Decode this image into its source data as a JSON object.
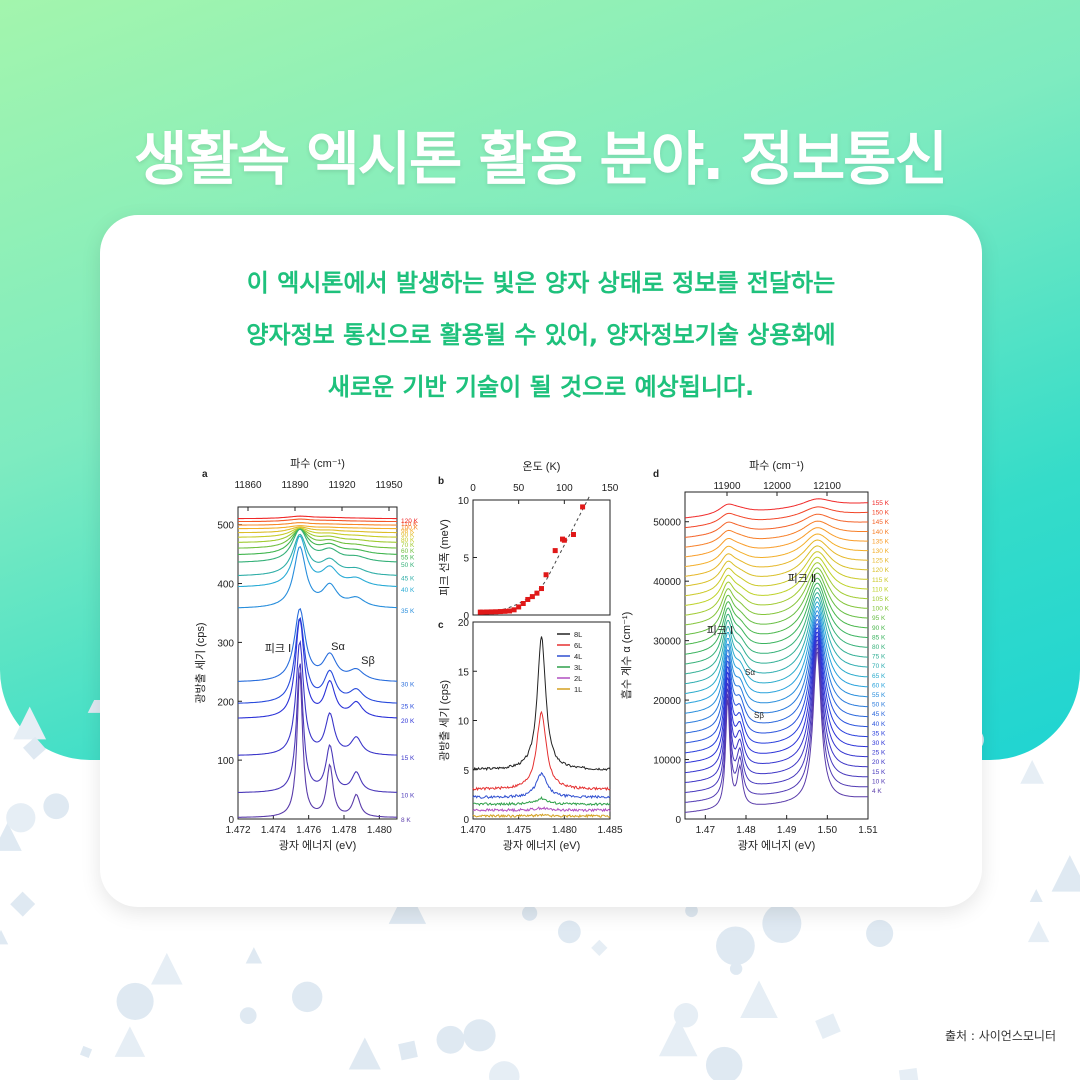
{
  "title": "생활속 엑시톤 활용 분야. 정보통신",
  "description": [
    "이 엑시톤에서 발생하는 빛은 양자 상태로 정보를 전달하는",
    "양자정보 통신으로 활용될 수 있어, 양자정보기술 상용화에",
    "새로운 기반 기술이 될 것으로 예상됩니다."
  ],
  "source": "출처 : 사이언스모니터",
  "colors": {
    "accent_text": "#1ec17c",
    "title": "#ffffff",
    "bg_from": "#a3f5ad",
    "bg_to": "#1fd4d2"
  },
  "chart_data": [
    {
      "panel": "a",
      "type": "line",
      "xlabel": "광자 에너지 (eV)",
      "ylabel": "광방출 세기 (cps)",
      "top_axis_label": "파수 (cm⁻¹)",
      "xlim": [
        1.472,
        1.481
      ],
      "ylim": [
        0,
        530
      ],
      "xticks": [
        "1.472",
        "1.474",
        "1.476",
        "1.478",
        "1.480"
      ],
      "yticks": [
        "0",
        "100",
        "200",
        "300",
        "400",
        "500"
      ],
      "top_ticks": [
        "11860",
        "11890",
        "11920",
        "11950"
      ],
      "annotations": [
        "피크 Ⅰ",
        "Sα",
        "Sβ"
      ],
      "series_labels": [
        "120 K",
        "110 K",
        "100 K",
        "98 K",
        "90 K",
        "80 K",
        "70 K",
        "60 K",
        "55 K",
        "50 K",
        "45 K",
        "40 K",
        "35 K",
        "30 K",
        "25 K",
        "20 K",
        "15 K",
        "10 K",
        "8 K"
      ],
      "offsets": [
        508,
        503,
        497,
        491,
        484,
        476,
        467,
        457,
        446,
        433,
        410,
        391,
        355,
        230,
        193,
        168,
        105,
        42,
        0
      ]
    },
    {
      "panel": "b",
      "type": "scatter",
      "ylabel": "피크 선폭 (meV)",
      "top_axis_label": "온도 (K)",
      "xlim": [
        0,
        150
      ],
      "ylim": [
        0,
        10
      ],
      "top_ticks": [
        "0",
        "50",
        "100",
        "150"
      ],
      "yticks": [
        "0",
        "5",
        "10"
      ],
      "x": [
        8,
        10,
        15,
        20,
        25,
        30,
        35,
        40,
        45,
        50,
        55,
        60,
        65,
        70,
        75,
        80,
        90,
        98,
        100,
        110,
        120
      ],
      "y": [
        0.25,
        0.25,
        0.26,
        0.27,
        0.28,
        0.3,
        0.32,
        0.35,
        0.45,
        0.7,
        1.0,
        1.35,
        1.6,
        1.9,
        2.3,
        3.5,
        5.6,
        6.6,
        6.5,
        7.0,
        9.4
      ]
    },
    {
      "panel": "c",
      "type": "line",
      "xlabel": "광자 에너지 (eV)",
      "ylabel": "광방출 세기 (cps)",
      "xlim": [
        1.47,
        1.485
      ],
      "ylim": [
        0,
        20
      ],
      "xticks": [
        "1.470",
        "1.475",
        "1.480",
        "1.485"
      ],
      "yticks": [
        "0",
        "5",
        "10",
        "15",
        "20"
      ],
      "series": [
        {
          "name": "8L",
          "color": "#222222",
          "base": 5.0,
          "peak": 18.5
        },
        {
          "name": "6L",
          "color": "#e53030",
          "base": 3.0,
          "peak": 10.8
        },
        {
          "name": "4L",
          "color": "#2f4fd0",
          "base": 2.2,
          "peak": 4.6
        },
        {
          "name": "3L",
          "color": "#2fa04a",
          "base": 1.5,
          "peak": 2.1
        },
        {
          "name": "2L",
          "color": "#b14fc0",
          "base": 0.9,
          "peak": 1.1
        },
        {
          "name": "1L",
          "color": "#d4a020",
          "base": 0.3,
          "peak": 0.4
        }
      ]
    },
    {
      "panel": "d",
      "type": "line",
      "xlabel": "광자 에너지 (eV)",
      "ylabel": "흡수 계수 α (cm⁻¹)",
      "top_axis_label": "파수 (cm⁻¹)",
      "xlim": [
        1.465,
        1.51
      ],
      "ylim": [
        0,
        55000
      ],
      "xticks": [
        "1.47",
        "1.48",
        "1.49",
        "1.50",
        "1.51"
      ],
      "yticks": [
        "0",
        "10000",
        "20000",
        "30000",
        "40000",
        "50000"
      ],
      "top_ticks": [
        "11900",
        "12000",
        "12100"
      ],
      "annotations": [
        "피크 Ⅰ",
        "피크 Ⅱ",
        "Sα",
        "Sβ"
      ],
      "series_labels": [
        "155 K",
        "150 K",
        "145 K",
        "140 K",
        "135 K",
        "130 K",
        "125 K",
        "120 K",
        "115 K",
        "110 K",
        "105 K",
        "100 K",
        "95 K",
        "90 K",
        "85 K",
        "80 K",
        "75 K",
        "70 K",
        "65 K",
        "60 K",
        "55 K",
        "50 K",
        "45 K",
        "40 K",
        "35 K",
        "30 K",
        "25 K",
        "20 K",
        "15 K",
        "10 K",
        "4 K"
      ]
    }
  ]
}
